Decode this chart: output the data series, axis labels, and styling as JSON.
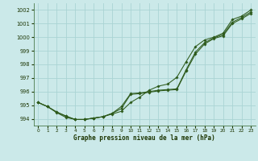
{
  "xlabel": "Graphe pression niveau de la mer (hPa)",
  "ylim": [
    993.5,
    1002.5
  ],
  "xlim": [
    -0.5,
    23.5
  ],
  "yticks": [
    994,
    995,
    996,
    997,
    998,
    999,
    1000,
    1001,
    1002
  ],
  "xticks": [
    0,
    1,
    2,
    3,
    4,
    5,
    6,
    7,
    8,
    9,
    10,
    11,
    12,
    13,
    14,
    15,
    16,
    17,
    18,
    19,
    20,
    21,
    22,
    23
  ],
  "bg_color": "#cbe9e9",
  "grid_color": "#aad4d4",
  "line_color": "#2d5a1b",
  "line1": [
    995.2,
    994.9,
    994.5,
    994.2,
    993.95,
    993.95,
    994.05,
    994.15,
    994.4,
    994.9,
    995.85,
    995.9,
    996.0,
    996.1,
    996.15,
    996.2,
    997.6,
    998.9,
    999.6,
    999.95,
    1000.2,
    1001.1,
    1001.45,
    1001.85
  ],
  "line2": [
    995.2,
    994.9,
    994.5,
    994.2,
    993.95,
    993.95,
    994.05,
    994.15,
    994.4,
    994.75,
    995.8,
    995.85,
    995.95,
    996.05,
    996.1,
    996.15,
    997.5,
    998.75,
    999.5,
    999.9,
    1000.1,
    1001.0,
    1001.35,
    1001.75
  ],
  "line3": [
    995.2,
    994.9,
    994.45,
    994.1,
    993.95,
    993.95,
    994.05,
    994.15,
    994.35,
    994.55,
    995.2,
    995.6,
    996.1,
    996.4,
    996.55,
    997.05,
    998.2,
    999.3,
    999.8,
    1000.0,
    1000.3,
    1001.3,
    1001.55,
    1002.0
  ]
}
